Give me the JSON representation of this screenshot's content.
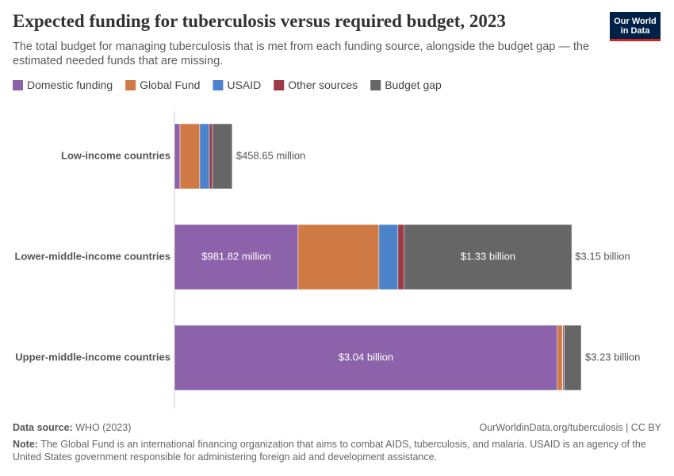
{
  "chart_data": {
    "type": "stacked-bar-horizontal",
    "title": "Expected funding for tuberculosis versus required budget, 2023",
    "subtitle": "The total budget for managing tuberculosis that is met from each funding source, alongside the budget gap — the estimated needed funds that are missing.",
    "categories": [
      "Low-income countries",
      "Lower-middle-income countries",
      "Upper-middle-income countries"
    ],
    "series": [
      {
        "name": "Domestic funding",
        "color": "#8c62aa",
        "values": [
          44000000,
          981820000,
          3040000000
        ],
        "value_labels": [
          null,
          "$981.82 million",
          "$3.04 billion"
        ]
      },
      {
        "name": "Global Fund",
        "color": "#cf7a44",
        "values": [
          157000000,
          642000000,
          40000000
        ]
      },
      {
        "name": "USAID",
        "color": "#4c82c9",
        "values": [
          76000000,
          151000000,
          5000000
        ]
      },
      {
        "name": "Other sources",
        "color": "#9a3b47",
        "values": [
          25000000,
          50000000,
          10000000
        ]
      },
      {
        "name": "Budget gap",
        "color": "#666666",
        "values": [
          156650000,
          1330000000,
          135000000
        ],
        "value_labels": [
          null,
          "$1.33 billion",
          null
        ]
      }
    ],
    "totals": [
      458650000,
      3150000000,
      3230000000
    ],
    "total_labels": [
      "$458.65 million",
      "$3.15 billion",
      "$3.23 billion"
    ],
    "logo": [
      "Our World",
      "in Data"
    ],
    "source_label": "Data source:",
    "source": "WHO (2023)",
    "credit": "OurWorldinData.org/tuberculosis | CC BY",
    "note_label": "Note:",
    "note": "The Global Fund is an international financing organization that aims to combat AIDS, tuberculosis, and malaria. USAID is an agency of the United States government responsible for administering foreign aid and development assistance."
  }
}
